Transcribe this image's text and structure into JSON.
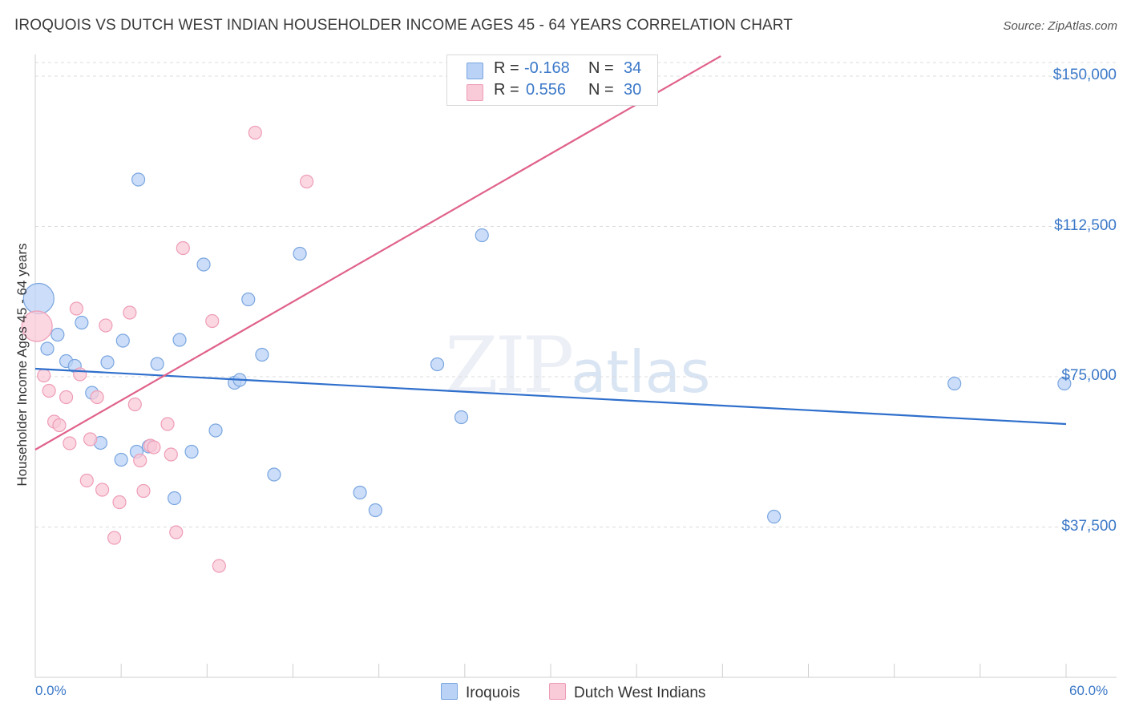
{
  "title": "IROQUOIS VS DUTCH WEST INDIAN HOUSEHOLDER INCOME AGES 45 - 64 YEARS CORRELATION CHART",
  "source": "Source: ZipAtlas.com",
  "watermark": {
    "zip": "ZIP",
    "atlas": "atlas"
  },
  "legend_top": {
    "rows": [
      {
        "r_label": "R =",
        "r_value": "-0.168",
        "n_label": "N =",
        "n_value": "34"
      },
      {
        "r_label": "R =",
        "r_value": "0.556",
        "n_label": "N =",
        "n_value": "30"
      }
    ]
  },
  "legend_bottom": {
    "series1": "Iroquois",
    "series2": "Dutch West Indians"
  },
  "colors": {
    "iroquois_fill": "#b9d2f5",
    "iroquois_stroke": "#7aa6e0",
    "iroquois_line": "#2f6fcc",
    "dutch_fill": "#f9cad8",
    "dutch_stroke": "#ee9db6",
    "dutch_line": "#e0628a",
    "grid": "#dcdcdc",
    "tick_text": "#3b78c8"
  },
  "chart_data": {
    "type": "scatter",
    "title": "IROQUOIS VS DUTCH WEST INDIAN HOUSEHOLDER INCOME AGES 45 - 64 YEARS CORRELATION CHART",
    "xlabel": "",
    "ylabel": "Householder Income Ages 45 - 64 years",
    "xlim": [
      0,
      60
    ],
    "ylim": [
      0,
      155000
    ],
    "x_tick_labels": [
      "0.0%",
      "60.0%"
    ],
    "y_ticks": [
      37500,
      75000,
      112500,
      150000
    ],
    "y_tick_labels": [
      "$37,500",
      "$75,000",
      "$112,500",
      "$150,000"
    ],
    "series": [
      {
        "name": "Iroquois",
        "r": -0.168,
        "n": 34,
        "trend": {
          "x": [
            0,
            60
          ],
          "y": [
            77000,
            63200
          ]
        },
        "points": [
          {
            "x": 0.2,
            "y": 94500,
            "big": true
          },
          {
            "x": 0.7,
            "y": 82000
          },
          {
            "x": 1.3,
            "y": 85500
          },
          {
            "x": 1.8,
            "y": 78900
          },
          {
            "x": 2.3,
            "y": 77700
          },
          {
            "x": 2.7,
            "y": 88500
          },
          {
            "x": 3.3,
            "y": 71000
          },
          {
            "x": 3.8,
            "y": 58500
          },
          {
            "x": 4.2,
            "y": 78600
          },
          {
            "x": 5.0,
            "y": 54300
          },
          {
            "x": 5.1,
            "y": 84000
          },
          {
            "x": 5.9,
            "y": 56300
          },
          {
            "x": 6.0,
            "y": 124200
          },
          {
            "x": 6.6,
            "y": 57600
          },
          {
            "x": 7.1,
            "y": 78200
          },
          {
            "x": 8.1,
            "y": 44700
          },
          {
            "x": 8.4,
            "y": 84200
          },
          {
            "x": 9.1,
            "y": 56300
          },
          {
            "x": 9.8,
            "y": 103000
          },
          {
            "x": 10.5,
            "y": 61600
          },
          {
            "x": 11.6,
            "y": 73500
          },
          {
            "x": 11.9,
            "y": 74200
          },
          {
            "x": 12.4,
            "y": 94300
          },
          {
            "x": 13.2,
            "y": 80500
          },
          {
            "x": 13.9,
            "y": 50600
          },
          {
            "x": 15.4,
            "y": 105700
          },
          {
            "x": 18.9,
            "y": 46100
          },
          {
            "x": 19.8,
            "y": 41700
          },
          {
            "x": 23.4,
            "y": 78100
          },
          {
            "x": 24.8,
            "y": 64900
          },
          {
            "x": 26.0,
            "y": 110300
          },
          {
            "x": 43.0,
            "y": 40100
          },
          {
            "x": 53.5,
            "y": 73300
          },
          {
            "x": 59.9,
            "y": 73300
          }
        ]
      },
      {
        "name": "Dutch West Indians",
        "r": 0.556,
        "n": 30,
        "trend": {
          "x": [
            0,
            39.9
          ],
          "y": [
            56800,
            155000
          ]
        },
        "points": [
          {
            "x": 0.1,
            "y": 87600,
            "big": true
          },
          {
            "x": 0.5,
            "y": 75300
          },
          {
            "x": 0.8,
            "y": 71500
          },
          {
            "x": 1.1,
            "y": 63800
          },
          {
            "x": 1.4,
            "y": 62900
          },
          {
            "x": 1.8,
            "y": 69900
          },
          {
            "x": 2.0,
            "y": 58400
          },
          {
            "x": 2.4,
            "y": 92000
          },
          {
            "x": 2.6,
            "y": 75600
          },
          {
            "x": 3.0,
            "y": 49100
          },
          {
            "x": 3.2,
            "y": 59400
          },
          {
            "x": 3.6,
            "y": 69900
          },
          {
            "x": 3.9,
            "y": 46800
          },
          {
            "x": 4.1,
            "y": 87800
          },
          {
            "x": 4.6,
            "y": 34800
          },
          {
            "x": 4.9,
            "y": 43700
          },
          {
            "x": 5.5,
            "y": 91000
          },
          {
            "x": 5.8,
            "y": 68100
          },
          {
            "x": 6.1,
            "y": 54100
          },
          {
            "x": 6.3,
            "y": 46500
          },
          {
            "x": 6.7,
            "y": 57800
          },
          {
            "x": 7.7,
            "y": 63200
          },
          {
            "x": 7.9,
            "y": 55600
          },
          {
            "x": 8.2,
            "y": 36200
          },
          {
            "x": 8.6,
            "y": 107100
          },
          {
            "x": 10.3,
            "y": 88900
          },
          {
            "x": 10.7,
            "y": 27800
          },
          {
            "x": 12.8,
            "y": 135900
          },
          {
            "x": 15.8,
            "y": 123700
          },
          {
            "x": 6.9,
            "y": 57400
          }
        ]
      }
    ]
  }
}
